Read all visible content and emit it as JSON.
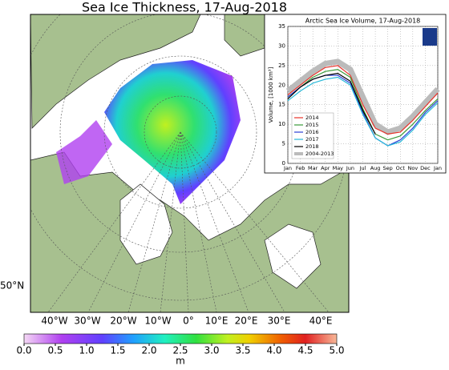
{
  "map": {
    "title": "Sea Ice Thickness, 17-Aug-2018",
    "lon_labels": [
      "40°W",
      "30°W",
      "20°W",
      "10°W",
      "0°",
      "10°E",
      "20°E",
      "30°E",
      "40°E"
    ],
    "lat_label": "50°N",
    "colorbar": {
      "ticks": [
        {
          "value": 0,
          "label": "0.0"
        },
        0.5,
        {
          "value": 1,
          "label": "1.0"
        },
        1.5,
        {
          "value": 2,
          "label": "2.0"
        },
        2.5,
        {
          "value": 3,
          "label": "3.0"
        },
        3.5,
        {
          "value": 4,
          "label": "4.0"
        },
        4.5,
        {
          "value": 5,
          "label": "5.0"
        }
      ],
      "unit": "m"
    }
  },
  "chart_data": {
    "type": "line",
    "title": "Arctic Sea Ice Volume, 17-Aug-2018",
    "ylabel": "Volume, [1000 km³]",
    "categories": [
      "Jan",
      "Feb",
      "Mar",
      "Apr",
      "May",
      "Jun",
      "Jul",
      "Aug",
      "Sep",
      "Oct",
      "Nov",
      "Dec",
      "Jan"
    ],
    "ylim": [
      0,
      35
    ],
    "yticks": [
      0,
      5,
      10,
      15,
      20,
      25,
      30,
      35
    ],
    "series": [
      {
        "name": "2014",
        "color": "#e8322a",
        "values": [
          17.5,
          20,
          22.5,
          24.5,
          25,
          22.5,
          15,
          9,
          7.5,
          8,
          11,
          14.5,
          18
        ]
      },
      {
        "name": "2015",
        "color": "#3a9a3a",
        "values": [
          17,
          19.5,
          22,
          23.5,
          24,
          22,
          14,
          7.5,
          6,
          7,
          10,
          13.5,
          16.5
        ]
      },
      {
        "name": "2016",
        "color": "#2b3fd6",
        "values": [
          17,
          19.5,
          21.5,
          22.5,
          22.5,
          20.5,
          13,
          6.5,
          4.5,
          6,
          9,
          13,
          16
        ]
      },
      {
        "name": "2017",
        "color": "#27b8d8",
        "values": [
          16,
          18.5,
          20.5,
          21.5,
          22,
          20,
          12.5,
          6.5,
          4.5,
          5.5,
          8.5,
          12.5,
          15.5
        ]
      },
      {
        "name": "2018",
        "color": "#000000",
        "values": [
          16.5,
          19.5,
          21.5,
          22.5,
          23,
          21,
          13.5,
          7.5,
          null,
          null,
          null,
          null,
          null
        ]
      },
      {
        "name": "2004-2013",
        "color": "#bbbbbb",
        "values": [
          18.5,
          21,
          23.5,
          25.5,
          26,
          24,
          17,
          10,
          8,
          9,
          12,
          15.5,
          19
        ]
      }
    ]
  }
}
